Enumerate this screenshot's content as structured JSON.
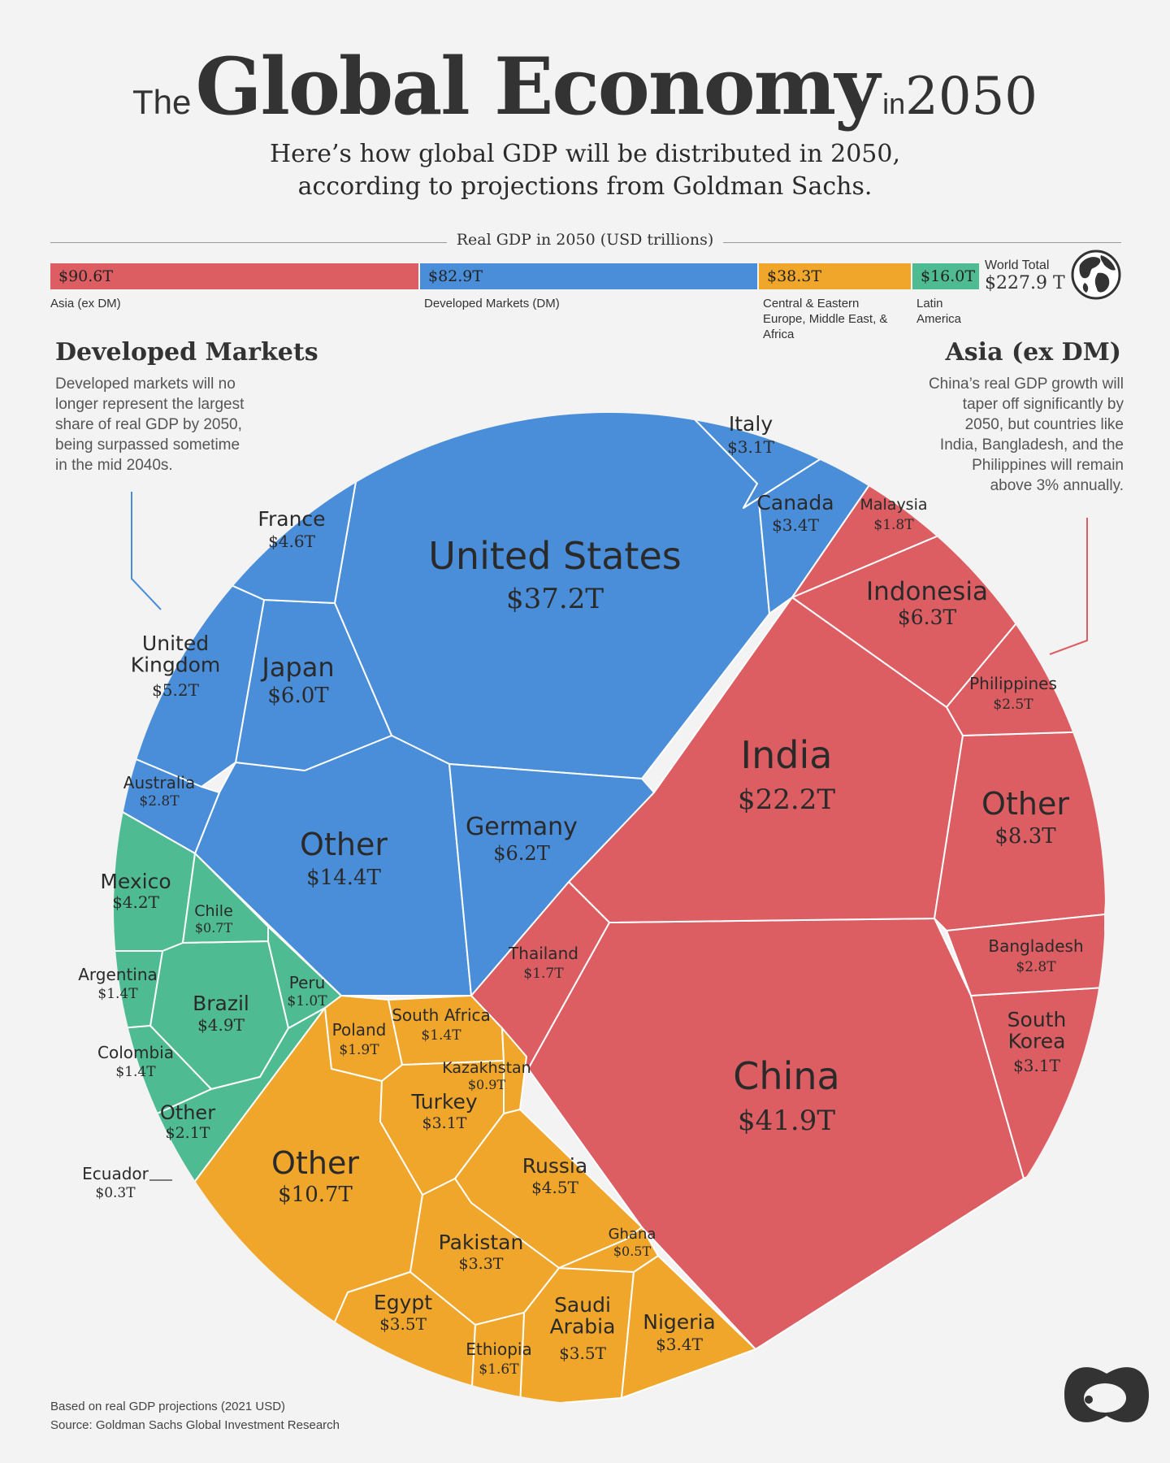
{
  "title": {
    "the": "The",
    "main": "Global Economy",
    "in": "in",
    "year": "2050"
  },
  "subtitle": {
    "line1": "Here’s how global GDP will be distributed in 2050,",
    "line2": "according to projections from Goldman Sachs."
  },
  "bar": {
    "title": "Real GDP in 2050 (USD trillions)",
    "segments": [
      {
        "value": "$90.6T",
        "label": "Asia (ex DM)",
        "color": "#dc5e63"
      },
      {
        "value": "$82.9T",
        "label": "Developed Markets (DM)",
        "color": "#4a8ed9"
      },
      {
        "value": "$38.3T",
        "label": "Central & Eastern Europe, Middle East, & Africa",
        "color": "#f0a62b"
      },
      {
        "value": "$16.0T",
        "label": "Latin America",
        "color": "#4fbb92"
      }
    ],
    "world_label": "World Total",
    "world_value": "$227.9 T",
    "globe_icon": "globe-icon"
  },
  "left_note": {
    "heading": "Developed Markets",
    "lines": [
      "Developed markets will no",
      "longer represent the largest",
      "share of real GDP by 2050,",
      "being surpassed sometime",
      "in the mid 2040s."
    ]
  },
  "right_note": {
    "heading": "Asia (ex DM)",
    "lines": [
      "China’s real GDP growth will",
      "taper off significantly by",
      "2050, but countries like",
      "India, Bangladesh, and the",
      "Philippines will remain",
      "above 3% annually."
    ]
  },
  "chart_data": {
    "type": "voronoi-treemap",
    "colors": {
      "Asia (ex DM)": "#dc5e63",
      "Developed Markets": "#4a8ed9",
      "CEEMEA": "#f0a62b",
      "Latin America": "#4fbb92"
    },
    "groups": [
      {
        "group": "Developed Markets",
        "items": [
          {
            "name": "United States",
            "value": 37.2,
            "label": "$37.2T"
          },
          {
            "name": "Other",
            "value": 14.4,
            "label": "$14.4T"
          },
          {
            "name": "Germany",
            "value": 6.2,
            "label": "$6.2T"
          },
          {
            "name": "Japan",
            "value": 6.0,
            "label": "$6.0T"
          },
          {
            "name": "United Kingdom",
            "value": 5.2,
            "label": "$5.2T"
          },
          {
            "name": "France",
            "value": 4.6,
            "label": "$4.6T"
          },
          {
            "name": "Canada",
            "value": 3.4,
            "label": "$3.4T"
          },
          {
            "name": "Italy",
            "value": 3.1,
            "label": "$3.1T"
          },
          {
            "name": "Australia",
            "value": 2.8,
            "label": "$2.8T"
          }
        ]
      },
      {
        "group": "Asia (ex DM)",
        "items": [
          {
            "name": "China",
            "value": 41.9,
            "label": "$41.9T"
          },
          {
            "name": "India",
            "value": 22.2,
            "label": "$22.2T"
          },
          {
            "name": "Other",
            "value": 8.3,
            "label": "$8.3T"
          },
          {
            "name": "Indonesia",
            "value": 6.3,
            "label": "$6.3T"
          },
          {
            "name": "South Korea",
            "value": 3.1,
            "label": "$3.1T"
          },
          {
            "name": "Bangladesh",
            "value": 2.8,
            "label": "$2.8T"
          },
          {
            "name": "Philippines",
            "value": 2.5,
            "label": "$2.5T"
          },
          {
            "name": "Malaysia",
            "value": 1.8,
            "label": "$1.8T"
          },
          {
            "name": "Thailand",
            "value": 1.7,
            "label": "$1.7T"
          }
        ]
      },
      {
        "group": "CEEMEA",
        "items": [
          {
            "name": "Other",
            "value": 10.7,
            "label": "$10.7T"
          },
          {
            "name": "Russia",
            "value": 4.5,
            "label": "$4.5T"
          },
          {
            "name": "Egypt",
            "value": 3.5,
            "label": "$3.5T"
          },
          {
            "name": "Saudi Arabia",
            "value": 3.5,
            "label": "$3.5T"
          },
          {
            "name": "Nigeria",
            "value": 3.4,
            "label": "$3.4T"
          },
          {
            "name": "Pakistan",
            "value": 3.3,
            "label": "$3.3T"
          },
          {
            "name": "Turkey",
            "value": 3.1,
            "label": "$3.1T"
          },
          {
            "name": "Poland",
            "value": 1.9,
            "label": "$1.9T"
          },
          {
            "name": "Ethiopia",
            "value": 1.6,
            "label": "$1.6T"
          },
          {
            "name": "South Africa",
            "value": 1.4,
            "label": "$1.4T"
          },
          {
            "name": "Kazakhstan",
            "value": 0.9,
            "label": "$0.9T"
          },
          {
            "name": "Ghana",
            "value": 0.5,
            "label": "$0.5T"
          }
        ]
      },
      {
        "group": "Latin America",
        "items": [
          {
            "name": "Brazil",
            "value": 4.9,
            "label": "$4.9T"
          },
          {
            "name": "Mexico",
            "value": 4.2,
            "label": "$4.2T"
          },
          {
            "name": "Other",
            "value": 2.1,
            "label": "$2.1T"
          },
          {
            "name": "Argentina",
            "value": 1.4,
            "label": "$1.4T"
          },
          {
            "name": "Colombia",
            "value": 1.4,
            "label": "$1.4T"
          },
          {
            "name": "Peru",
            "value": 1.0,
            "label": "$1.0T"
          },
          {
            "name": "Chile",
            "value": 0.7,
            "label": "$0.7T"
          },
          {
            "name": "Ecuador",
            "value": 0.3,
            "label": "$0.3T"
          }
        ]
      }
    ]
  },
  "footer": {
    "line1": "Based on real GDP projections (2021 USD)",
    "line2": "Source: Goldman Sachs Global Investment Research"
  },
  "logo_icon": "visual-capitalist-logo-icon"
}
